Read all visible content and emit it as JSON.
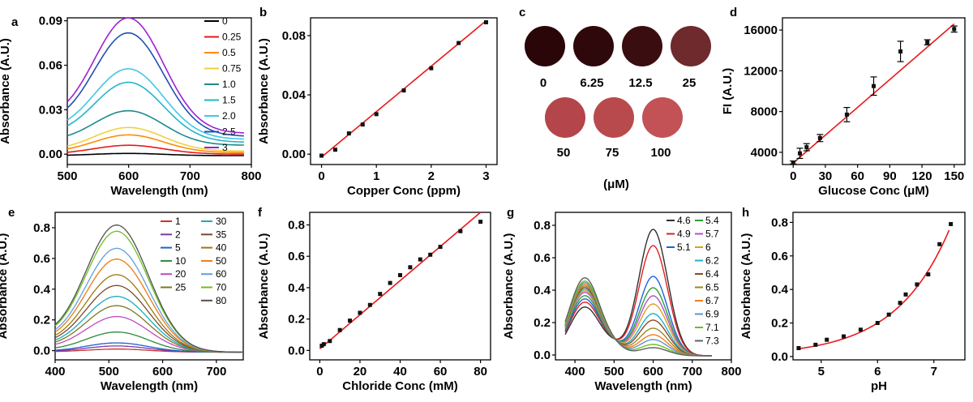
{
  "chart_data": [
    {
      "panel": "a",
      "type": "line",
      "xlabel": "Wavelength (nm)",
      "ylabel": "Absorbance (A.U.)",
      "xlim": [
        500,
        800
      ],
      "ylim": [
        -0.007,
        0.092
      ],
      "xticks": [
        "500",
        "600",
        "700",
        "800"
      ],
      "yticks": [
        "0.00",
        "0.03",
        "0.06",
        "0.09"
      ],
      "peak_x": 600,
      "peak_width": 95,
      "legend_position": "right",
      "series": [
        {
          "name": "0",
          "color": "#000000",
          "peak": 0.0005,
          "baseline": -0.001
        },
        {
          "name": "0.25",
          "color": "#e41a1c",
          "peak": 0.006,
          "baseline": 0.0
        },
        {
          "name": "0.5",
          "color": "#ff8c00",
          "peak": 0.013,
          "baseline": 0.001
        },
        {
          "name": "0.75",
          "color": "#f0d040",
          "peak": 0.018,
          "baseline": 0.002
        },
        {
          "name": "1.0",
          "color": "#1f8a8a",
          "peak": 0.026,
          "baseline": 0.003
        },
        {
          "name": "1.5",
          "color": "#22b5c9",
          "peak": 0.044,
          "baseline": 0.004
        },
        {
          "name": "2.0",
          "color": "#40c8e8",
          "peak": 0.052,
          "baseline": 0.005
        },
        {
          "name": "2.5",
          "color": "#2050b0",
          "peak": 0.075,
          "baseline": 0.006
        },
        {
          "name": "3",
          "color": "#a020d0",
          "peak": 0.084,
          "baseline": 0.007
        }
      ]
    },
    {
      "panel": "b",
      "type": "scatter",
      "xlabel": "Copper Conc (ppm)",
      "ylabel": "Absorbance (A.U.)",
      "xlim": [
        -0.2,
        3.2
      ],
      "ylim": [
        -0.007,
        0.092
      ],
      "xticks": [
        "0",
        "1",
        "2",
        "3"
      ],
      "yticks": [
        "0.00",
        "0.04",
        "0.08"
      ],
      "x": [
        0,
        0.25,
        0.5,
        0.75,
        1.0,
        1.5,
        2.0,
        2.5,
        3.0
      ],
      "y": [
        -0.001,
        0.003,
        0.014,
        0.02,
        0.027,
        0.043,
        0.058,
        0.075,
        0.089
      ],
      "fit": {
        "x": [
          0,
          3
        ],
        "y": [
          -0.002,
          0.09
        ]
      }
    },
    {
      "panel": "d",
      "type": "scatter",
      "xlabel": "Glucose Conc (μM)",
      "ylabel": "FI (A.U.)",
      "xlim": [
        -10,
        160
      ],
      "ylim": [
        2800,
        17200
      ],
      "xticks": [
        "0",
        "30",
        "60",
        "90",
        "120",
        "150"
      ],
      "yticks": [
        "4000",
        "8000",
        "12000",
        "16000"
      ],
      "x": [
        0,
        6.25,
        12.5,
        25,
        50,
        75,
        100,
        125,
        150
      ],
      "y": [
        3000,
        3900,
        4500,
        5400,
        7700,
        10500,
        13900,
        14800,
        16100
      ],
      "err": [
        150,
        500,
        350,
        350,
        700,
        900,
        1000,
        250,
        300
      ],
      "fit": {
        "x": [
          0,
          150
        ],
        "y": [
          2950,
          16600
        ]
      }
    },
    {
      "panel": "e",
      "type": "line",
      "xlabel": "Wavelength (nm)",
      "ylabel": "Absorbance (A.U.)",
      "xlim": [
        400,
        750
      ],
      "ylim": [
        -0.06,
        0.9
      ],
      "xticks": [
        "400",
        "500",
        "600",
        "700"
      ],
      "yticks": [
        "0.0",
        "0.2",
        "0.4",
        "0.6",
        "0.8"
      ],
      "peak_x": 515,
      "peak_width": 105,
      "legend_position": "top-right",
      "series": [
        {
          "name": "1",
          "color": "#cf3030",
          "peak": 0.02
        },
        {
          "name": "2",
          "color": "#7a3aa8",
          "peak": 0.04
        },
        {
          "name": "5",
          "color": "#2060d0",
          "peak": 0.06
        },
        {
          "name": "10",
          "color": "#2a8a3a",
          "peak": 0.13
        },
        {
          "name": "20",
          "color": "#c04ac0",
          "peak": 0.23
        },
        {
          "name": "25",
          "color": "#7a7a20",
          "peak": 0.3
        },
        {
          "name": "30",
          "color": "#1aaac0",
          "peak": 0.36
        },
        {
          "name": "35",
          "color": "#7a4a2a",
          "peak": 0.43
        },
        {
          "name": "40",
          "color": "#9a7a10",
          "peak": 0.5
        },
        {
          "name": "50",
          "color": "#f07a10",
          "peak": 0.6
        },
        {
          "name": "60",
          "color": "#60a0e0",
          "peak": 0.67
        },
        {
          "name": "70",
          "color": "#6ac020",
          "peak": 0.78
        },
        {
          "name": "80",
          "color": "#505050",
          "peak": 0.82
        }
      ]
    },
    {
      "panel": "f",
      "type": "scatter",
      "xlabel": "Chloride Conc (mM)",
      "ylabel": "Absorbance (A.U.)",
      "xlim": [
        -5,
        85
      ],
      "ylim": [
        -0.06,
        0.88
      ],
      "xticks": [
        "0",
        "20",
        "40",
        "60",
        "80"
      ],
      "yticks": [
        "0.0",
        "0.2",
        "0.4",
        "0.6",
        "0.8"
      ],
      "x": [
        1,
        2,
        5,
        10,
        15,
        20,
        25,
        30,
        35,
        40,
        45,
        50,
        55,
        60,
        70,
        80
      ],
      "y": [
        0.03,
        0.04,
        0.06,
        0.13,
        0.19,
        0.24,
        0.29,
        0.36,
        0.43,
        0.48,
        0.53,
        0.58,
        0.61,
        0.66,
        0.76,
        0.82
      ],
      "fit": {
        "x": [
          0,
          80
        ],
        "y": [
          0.01,
          0.88
        ]
      }
    },
    {
      "panel": "g",
      "type": "line",
      "xlabel": "Wavelength (nm)",
      "ylabel": "Absorbance (A.U.)",
      "xlim": [
        350,
        800
      ],
      "ylim": [
        -0.03,
        0.88
      ],
      "xticks": [
        "400",
        "500",
        "600",
        "700",
        "800"
      ],
      "yticks": [
        "0.0",
        "0.2",
        "0.4",
        "0.6",
        "0.8"
      ],
      "legend_position": "top-right",
      "series": [
        {
          "name": "4.6",
          "color": "#303030",
          "peak1": 0.3,
          "peak2": 0.78
        },
        {
          "name": "4.9",
          "color": "#e02020",
          "peak1": 0.33,
          "peak2": 0.68
        },
        {
          "name": "5.1",
          "color": "#2060e0",
          "peak1": 0.35,
          "peak2": 0.49
        },
        {
          "name": "5.4",
          "color": "#30a030",
          "peak1": 0.37,
          "peak2": 0.42
        },
        {
          "name": "5.7",
          "color": "#b050d0",
          "peak1": 0.39,
          "peak2": 0.37
        },
        {
          "name": "6",
          "color": "#e0a020",
          "peak1": 0.4,
          "peak2": 0.32
        },
        {
          "name": "6.2",
          "color": "#20b0d0",
          "peak1": 0.41,
          "peak2": 0.26
        },
        {
          "name": "6.4",
          "color": "#8a4a2a",
          "peak1": 0.42,
          "peak2": 0.22
        },
        {
          "name": "6.5",
          "color": "#9a8a20",
          "peak1": 0.43,
          "peak2": 0.17
        },
        {
          "name": "6.7",
          "color": "#f08020",
          "peak1": 0.44,
          "peak2": 0.13
        },
        {
          "name": "6.9",
          "color": "#6090d0",
          "peak1": 0.45,
          "peak2": 0.1
        },
        {
          "name": "7.1",
          "color": "#6ac020",
          "peak1": 0.46,
          "peak2": 0.07
        },
        {
          "name": "7.3",
          "color": "#606060",
          "peak1": 0.48,
          "peak2": 0.05
        }
      ]
    },
    {
      "panel": "h",
      "type": "scatter",
      "xlabel": "pH",
      "ylabel": "Absorbance (A.U.)",
      "xlim": [
        4.5,
        7.55
      ],
      "ylim": [
        -0.02,
        0.86
      ],
      "xticks": [
        "5",
        "6",
        "7"
      ],
      "yticks": [
        "0.0",
        "0.2",
        "0.4",
        "0.6",
        "0.8"
      ],
      "x": [
        4.6,
        4.9,
        5.1,
        5.4,
        5.7,
        6.0,
        6.2,
        6.4,
        6.5,
        6.7,
        6.9,
        7.1,
        7.3
      ],
      "y": [
        0.05,
        0.07,
        0.1,
        0.12,
        0.16,
        0.2,
        0.25,
        0.32,
        0.37,
        0.43,
        0.49,
        0.67,
        0.79
      ],
      "fit": {
        "type": "exponential",
        "a": 0.0462,
        "b": 1.046,
        "x0": 4.6
      }
    }
  ],
  "panel_c": {
    "unit_label": "(μM)",
    "spots": [
      {
        "label": "0",
        "color": "#2a0608"
      },
      {
        "label": "6.25",
        "color": "#2e080a"
      },
      {
        "label": "12.5",
        "color": "#3a0d10"
      },
      {
        "label": "25",
        "color": "#6e2a2c"
      },
      {
        "label": "50",
        "color": "#b4454a"
      },
      {
        "label": "75",
        "color": "#b84a4e"
      },
      {
        "label": "100",
        "color": "#c25256"
      }
    ]
  },
  "panel_letters": [
    "a",
    "b",
    "c",
    "d",
    "e",
    "f",
    "g",
    "h"
  ],
  "fit_color": "#e8191c"
}
